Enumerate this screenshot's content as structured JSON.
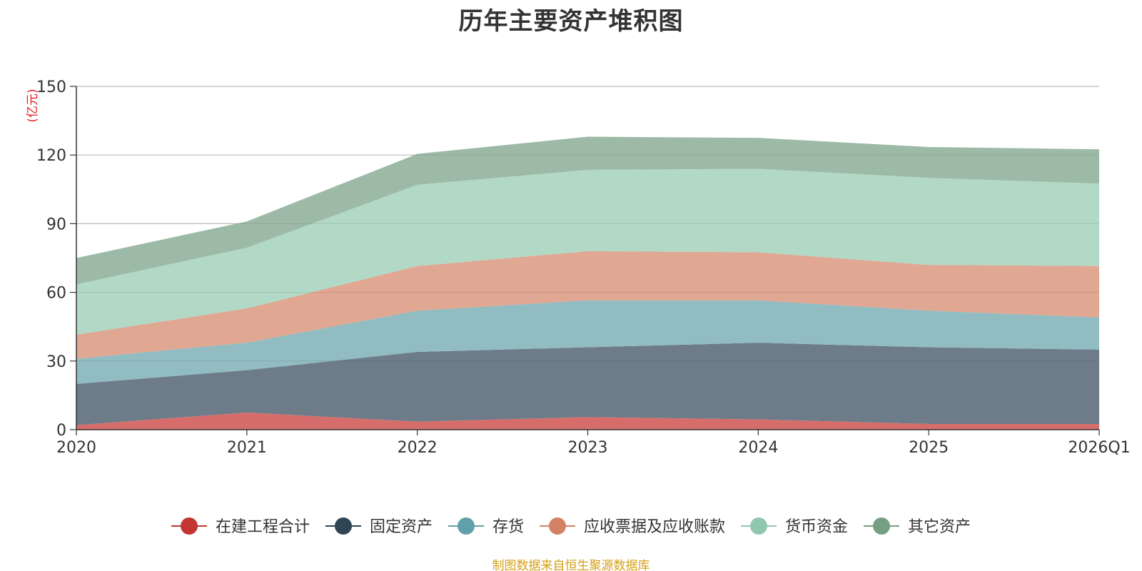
{
  "chart_data": {
    "type": "area",
    "title": "历年主要资产堆积图",
    "ylabel": "(亿元)",
    "xlabel": "",
    "categories": [
      "2020",
      "2021",
      "2022",
      "2023",
      "2024",
      "2025",
      "2026Q1"
    ],
    "ylim": [
      0,
      150
    ],
    "yticks": [
      0,
      30,
      60,
      90,
      120,
      150
    ],
    "stacked": true,
    "grid": true,
    "legend_position": "bottom",
    "series": [
      {
        "name": "在建工程合计",
        "values": [
          2,
          7.5,
          3.5,
          5.5,
          4.5,
          2.5,
          2.5
        ],
        "color": "#c23531",
        "area_color": "#d66d6a"
      },
      {
        "name": "固定资产",
        "values": [
          18,
          18.5,
          30.5,
          30.5,
          33.5,
          33.5,
          32.5
        ],
        "color": "#2f4554",
        "area_color": "#6d7c88"
      },
      {
        "name": "存货",
        "values": [
          11,
          12,
          18,
          20.5,
          18.5,
          16,
          14
        ],
        "color": "#61a0a8",
        "area_color": "#90bcc2"
      },
      {
        "name": "应收票据及应收账款",
        "values": [
          10.5,
          15,
          19.5,
          21.5,
          21,
          20,
          22.5
        ],
        "color": "#d48265",
        "area_color": "#e0a792"
      },
      {
        "name": "货币资金",
        "values": [
          22,
          26.5,
          35.5,
          35.5,
          36.5,
          38,
          36
        ],
        "color": "#91c7ae",
        "area_color": "#b2d8c6"
      },
      {
        "name": "其它资产",
        "values": [
          11.5,
          11.5,
          13.5,
          14.5,
          13.5,
          13.5,
          15
        ],
        "color": "#749f83",
        "area_color": "#9dbaa7"
      }
    ],
    "source_note": "制图数据来自恒生聚源数据库"
  }
}
